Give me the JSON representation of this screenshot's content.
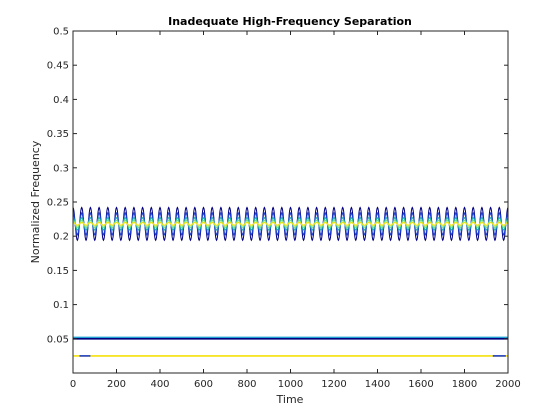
{
  "chart_data": {
    "type": "line",
    "title": "Inadequate High-Frequency Separation",
    "xlabel": "Time",
    "ylabel": "Normalized Frequency",
    "xlim": [
      0,
      2000
    ],
    "ylim": [
      0,
      0.5
    ],
    "xticks": [
      0,
      200,
      400,
      600,
      800,
      1000,
      1200,
      1400,
      1600,
      1800,
      2000
    ],
    "yticks": [
      0.05,
      0.1,
      0.15,
      0.2,
      0.25,
      0.3,
      0.35,
      0.4,
      0.45,
      0.5
    ],
    "ytick_labels": [
      "0.05",
      "0.1",
      "0.15",
      "0.2",
      "0.25",
      "0.3",
      "0.35",
      "0.4",
      "0.45",
      "0.5"
    ],
    "grid": false,
    "plot_kind": "contour of time-frequency ridges",
    "oscillating_band": {
      "center": 0.218,
      "period": 40,
      "contours": [
        {
          "color": "#000080",
          "amplitude": 0.024
        },
        {
          "color": "#1f3fd0",
          "amplitude": 0.016
        },
        {
          "color": "#20b2aa",
          "amplitude": 0.009
        },
        {
          "color": "#7fe07f",
          "amplitude": 0.005
        },
        {
          "color": "#f5e10a",
          "amplitude": 0.002
        }
      ]
    },
    "flat_ridges": [
      {
        "y": 0.052,
        "color": "#20a0d0"
      },
      {
        "y": 0.05,
        "color": "#000080"
      },
      {
        "y": 0.025,
        "color": "#f5e10a"
      },
      {
        "y": 0.025,
        "color": "#1f3fd0",
        "x": [
          30,
          80
        ]
      },
      {
        "y": 0.025,
        "color": "#1f3fd0",
        "x": [
          1930,
          1990
        ]
      }
    ],
    "colors": {
      "axis": "#262626",
      "background": "#ffffff"
    }
  }
}
